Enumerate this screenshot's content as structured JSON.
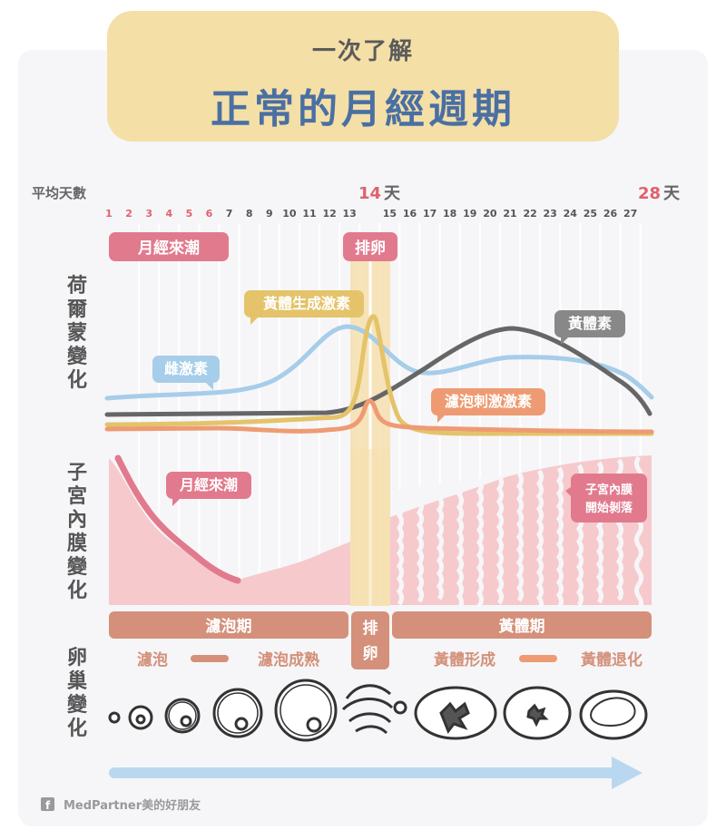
{
  "header": {
    "subtitle": "一次了解",
    "title": "正常的月經週期"
  },
  "axis": {
    "label": "平均天數",
    "days": [
      "1",
      "2",
      "3",
      "4",
      "5",
      "6",
      "7",
      "8",
      "9",
      "10",
      "11",
      "12",
      "13",
      "14",
      "15",
      "16",
      "17",
      "18",
      "19",
      "20",
      "21",
      "22",
      "23",
      "24",
      "25",
      "26",
      "27",
      "28"
    ],
    "ovulation_day_label": "14",
    "last_day_label": "28",
    "day_unit": "天",
    "menses_days_color": "#e0616d"
  },
  "phases_top": {
    "menstruation": "月經來潮",
    "ovulation": "排卵"
  },
  "hormones": {
    "row_label": "荷爾蒙變化",
    "lh": "黃體生成激素",
    "estrogen": "雌激素",
    "progesterone": "黃體素",
    "fsh": "濾泡刺激激素"
  },
  "endometrium": {
    "row_label": "子宮內膜變化",
    "menses_label": "月經來潮",
    "shedding_label_1": "子宮內膜",
    "shedding_label_2": "開始剝落"
  },
  "phases_bottom": {
    "follicular": "濾泡期",
    "ovulation_1": "排",
    "ovulation_2": "卵",
    "luteal": "黃體期"
  },
  "ovary": {
    "row_label": "卵巢變化",
    "follicle": "濾泡",
    "follicle_mature": "濾泡成熟",
    "corpus_luteum": "黃體形成",
    "corpus_regress": "黃體退化"
  },
  "footer": {
    "brand": "MedPartner美的好朋友",
    "brand_icon": "facebook-icon"
  },
  "colors": {
    "lh": "#e4c36a",
    "estrogen": "#a6cde9",
    "progesterone": "#666666",
    "fsh": "#ee9b73",
    "menses": "#e27a8e",
    "phase_bar": "#d4907a",
    "title_blue": "#4a6fa3",
    "accent_red": "#e0616d"
  }
}
